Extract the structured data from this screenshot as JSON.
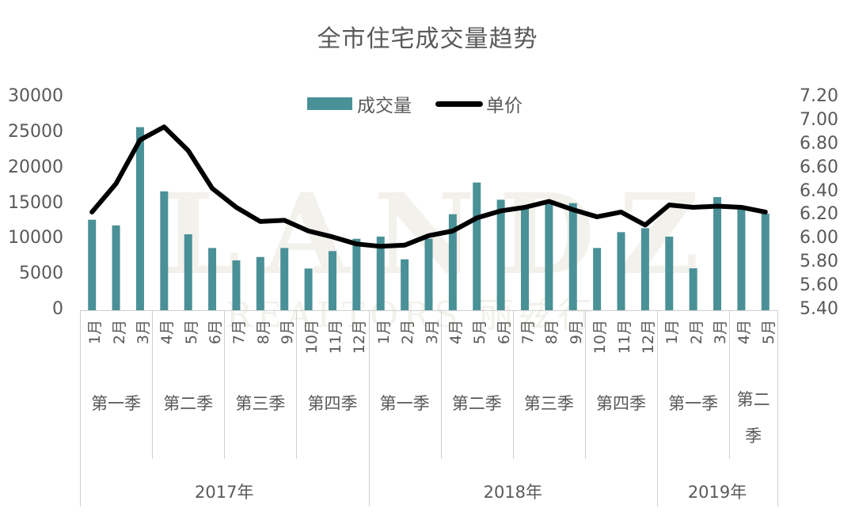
{
  "title": "全市住宅成交量趋势",
  "legend": {
    "bar_label": "成交量",
    "line_label": "单价"
  },
  "colors": {
    "bar": "#4a9097",
    "line": "#000000",
    "text": "#595959",
    "grid": "#d0d0d0"
  },
  "watermark": {
    "main": "LANDZ",
    "sub": "REALTORS 丽兹行"
  },
  "left_axis": {
    "ticks": [
      "30000",
      "25000",
      "20000",
      "15000",
      "10000",
      "5000",
      "0"
    ]
  },
  "right_axis": {
    "ticks": [
      "7.20",
      "7.00",
      "6.80",
      "6.60",
      "6.40",
      "6.20",
      "6.00",
      "5.80",
      "5.60",
      "5.40"
    ]
  },
  "x_axis": {
    "years": [
      {
        "label": "2017年",
        "months": 12
      },
      {
        "label": "2018年",
        "months": 12
      },
      {
        "label": "2019年",
        "months": 5
      }
    ],
    "quarters": [
      {
        "label": "第一季",
        "months": 3
      },
      {
        "label": "第二季",
        "months": 3
      },
      {
        "label": "第三季",
        "months": 3
      },
      {
        "label": "第四季",
        "months": 3
      },
      {
        "label": "第一季",
        "months": 3
      },
      {
        "label": "第二季",
        "months": 3
      },
      {
        "label": "第三季",
        "months": 3
      },
      {
        "label": "第四季",
        "months": 3
      },
      {
        "label": "第一季",
        "months": 3
      },
      {
        "label": "第二季",
        "months": 2
      }
    ]
  },
  "chart_data": {
    "type": "bar",
    "title": "全市住宅成交量趋势",
    "xlabel": "",
    "ylabel": "",
    "ylim": [
      0,
      30000
    ],
    "y2lim": [
      5.4,
      7.2
    ],
    "legend_position": "top",
    "grid": false,
    "categories": [
      "2017年第一季1月",
      "2017年第一季2月",
      "2017年第一季3月",
      "2017年第二季4月",
      "2017年第二季5月",
      "2017年第二季6月",
      "2017年第三季7月",
      "2017年第三季8月",
      "2017年第三季9月",
      "2017年第四季10月",
      "2017年第四季11月",
      "2017年第四季12月",
      "2018年第一季1月",
      "2018年第一季2月",
      "2018年第一季3月",
      "2018年第二季4月",
      "2018年第二季5月",
      "2018年第二季6月",
      "2018年第三季7月",
      "2018年第三季8月",
      "2018年第三季9月",
      "2018年第四季10月",
      "2018年第四季11月",
      "2018年第四季12月",
      "2019年第一季1月",
      "2019年第一季2月",
      "2019年第一季3月",
      "2019年第二季4月",
      "2019年第二季5月"
    ],
    "month_labels": [
      "1月",
      "2月",
      "3月",
      "4月",
      "5月",
      "6月",
      "7月",
      "8月",
      "9月",
      "10月",
      "11月",
      "12月",
      "1月",
      "2月",
      "3月",
      "4月",
      "5月",
      "6月",
      "7月",
      "8月",
      "9月",
      "10月",
      "11月",
      "12月",
      "1月",
      "2月",
      "3月",
      "4月",
      "5月"
    ],
    "series": [
      {
        "name": "成交量",
        "type": "bar",
        "axis": "left",
        "values": [
          12750,
          11950,
          25800,
          16750,
          10700,
          8770,
          7020,
          7500,
          8770,
          5870,
          8330,
          10070,
          10370,
          7170,
          10070,
          13530,
          17990,
          15570,
          14380,
          14940,
          15090,
          8770,
          11000,
          11560,
          10370,
          5910,
          15940,
          14350,
          13600
        ]
      },
      {
        "name": "单价",
        "type": "line",
        "axis": "right",
        "values": [
          6.23,
          6.47,
          6.84,
          6.95,
          6.75,
          6.43,
          6.27,
          6.15,
          6.16,
          6.07,
          6.02,
          5.96,
          5.94,
          5.95,
          6.03,
          6.07,
          6.18,
          6.24,
          6.27,
          6.32,
          6.25,
          6.19,
          6.23,
          6.12,
          6.29,
          6.27,
          6.28,
          6.27,
          6.23
        ]
      }
    ]
  }
}
